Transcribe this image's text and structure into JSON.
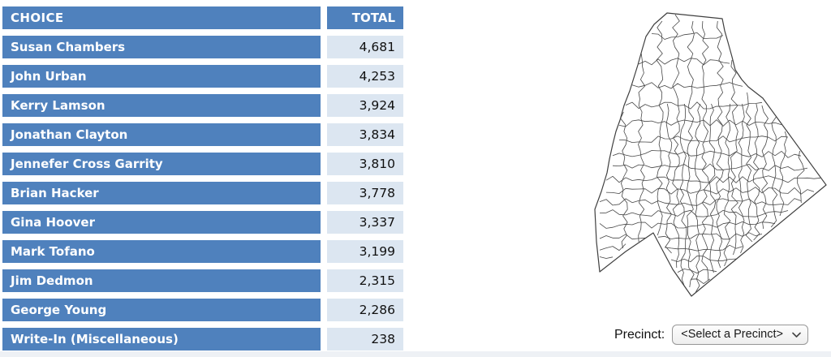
{
  "table": {
    "headers": {
      "choice": "CHOICE",
      "total": "TOTAL"
    },
    "rows": [
      {
        "choice": "Susan Chambers",
        "total": "4,681"
      },
      {
        "choice": "John Urban",
        "total": "4,253"
      },
      {
        "choice": "Kerry Lamson",
        "total": "3,924"
      },
      {
        "choice": "Jonathan Clayton",
        "total": "3,834"
      },
      {
        "choice": "Jennefer Cross Garrity",
        "total": "3,810"
      },
      {
        "choice": "Brian Hacker",
        "total": "3,778"
      },
      {
        "choice": "Gina Hoover",
        "total": "3,337"
      },
      {
        "choice": "Mark Tofano",
        "total": "3,199"
      },
      {
        "choice": "Jim Dedmon",
        "total": "2,315"
      },
      {
        "choice": "George Young",
        "total": "2,286"
      },
      {
        "choice": "Write-In (Miscellaneous)",
        "total": "238"
      }
    ]
  },
  "precinct_control": {
    "label": "Precinct:",
    "select_value": "<Select a Precinct>"
  },
  "colors": {
    "row_blue": "#4f81bd",
    "total_cell_light": "#dce6f1",
    "map_stroke": "#3f3f3f",
    "footer_strip": "#eef1f5"
  }
}
